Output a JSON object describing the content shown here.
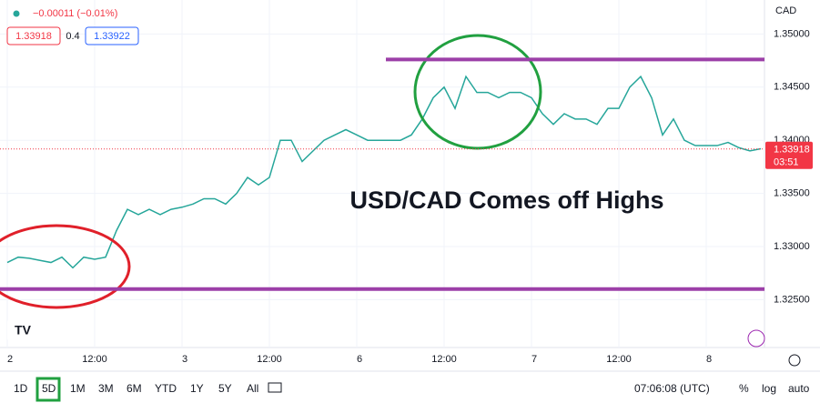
{
  "chart_data": {
    "type": "line",
    "change": "−0.00011 (−0.01%)",
    "bid": "1.33918",
    "spread": "0.4",
    "ask": "1.33922",
    "currency": "CAD",
    "annotation": "USD/CAD Comes off Highs",
    "countdown": "03:51",
    "last_price": 1.33918,
    "levels": [
      1.3476,
      1.326
    ],
    "categories": [
      "2",
      null,
      null,
      null,
      null,
      null,
      null,
      null,
      "12:00",
      null,
      null,
      null,
      null,
      null,
      null,
      null,
      "3",
      null,
      null,
      null,
      null,
      null,
      null,
      null,
      "12:00",
      null,
      null,
      null,
      null,
      null,
      null,
      null,
      "6",
      null,
      null,
      null,
      null,
      null,
      null,
      null,
      "12:00",
      null,
      null,
      null,
      null,
      null,
      null,
      null,
      "7",
      null,
      null,
      null,
      null,
      null,
      null,
      null,
      "12:00",
      null,
      null,
      null,
      null,
      null,
      null,
      null,
      "8",
      null,
      null,
      null,
      null,
      null
    ],
    "series": [
      {
        "name": "USD/CAD",
        "color": "#26a69a",
        "values": [
          1.3285,
          1.329,
          1.3289,
          1.3287,
          1.3285,
          1.329,
          1.328,
          1.329,
          1.3288,
          1.329,
          1.3315,
          1.3335,
          1.333,
          1.3335,
          1.333,
          1.3335,
          1.3337,
          1.334,
          1.3345,
          1.3345,
          1.334,
          1.335,
          1.3365,
          1.3358,
          1.3365,
          1.34,
          1.34,
          1.338,
          1.339,
          1.34,
          1.3405,
          1.341,
          1.3405,
          1.34,
          1.34,
          1.34,
          1.34,
          1.3405,
          1.342,
          1.344,
          1.345,
          1.343,
          1.346,
          1.3445,
          1.3445,
          1.344,
          1.3445,
          1.3445,
          1.344,
          1.3425,
          1.3415,
          1.3425,
          1.342,
          1.342,
          1.3415,
          1.343,
          1.343,
          1.345,
          1.346,
          1.344,
          1.3405,
          1.342,
          1.34,
          1.3395,
          1.3395,
          1.3395,
          1.3398,
          1.3393,
          1.339,
          1.3392
        ]
      }
    ],
    "ylim": [
      1.3205,
      1.3532
    ],
    "yticks": [
      {
        "value": 1.35,
        "label": "1.35000"
      },
      {
        "value": 1.345,
        "label": "1.34500"
      },
      {
        "value": 1.34,
        "label": "1.34000"
      },
      {
        "value": 1.335,
        "label": "1.33500"
      },
      {
        "value": 1.33,
        "label": "1.33000"
      },
      {
        "value": 1.325,
        "label": "1.32500"
      }
    ],
    "grid": true
  },
  "toolbar": {
    "ranges": [
      "1D",
      "5D",
      "1M",
      "3M",
      "6M",
      "YTD",
      "1Y",
      "5Y",
      "All"
    ],
    "active": 1,
    "clock": "07:06:08 (UTC)",
    "options": [
      "%",
      "log",
      "auto"
    ]
  }
}
